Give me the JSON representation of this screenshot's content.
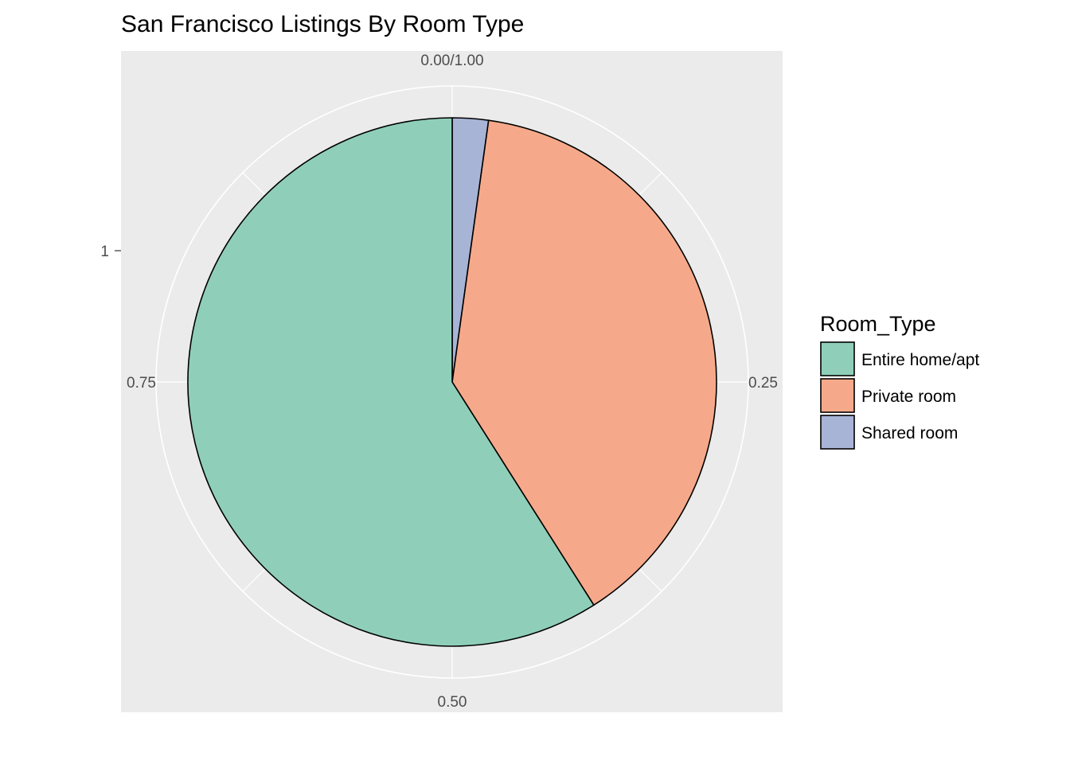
{
  "chart_data": {
    "type": "pie",
    "title": "San Francisco Listings By Room Type",
    "legend_title": "Room_Type",
    "legend_position": "right",
    "categories": [
      "Entire home/apt",
      "Private room",
      "Shared room"
    ],
    "values": [
      0.59,
      0.388,
      0.022
    ],
    "colors": [
      "#8fcfb9",
      "#f6a98a",
      "#a8b4d6"
    ],
    "theta_ticks": [
      "0.00/1.00",
      "0.25",
      "0.50",
      "0.75"
    ],
    "radial_tick": "1",
    "panel_background": "#ebebeb",
    "grid": true
  }
}
